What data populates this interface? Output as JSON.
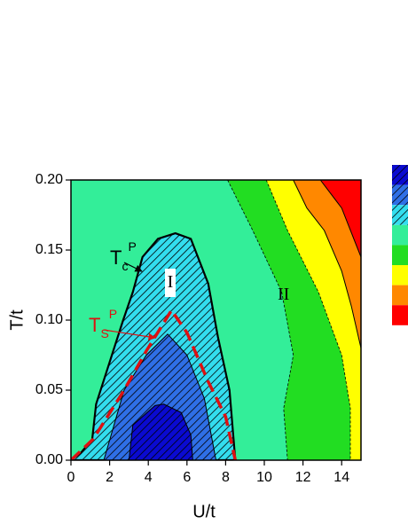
{
  "chart_data": {
    "type": "contour",
    "xlabel": "U/t",
    "ylabel": "T/t",
    "xlim": [
      0,
      15
    ],
    "ylim": [
      0,
      0.2
    ],
    "xticks": [
      0,
      2,
      4,
      6,
      8,
      10,
      12,
      14
    ],
    "yticks": [
      {
        "value": 0,
        "label": "0.00"
      },
      {
        "value": 0.05,
        "label": "0.05"
      },
      {
        "value": 0.1,
        "label": "0.10"
      },
      {
        "value": 0.15,
        "label": "0.15"
      },
      {
        "value": 0.2,
        "label": "0.20"
      }
    ],
    "background": "#33ee99",
    "contours": [
      {
        "color": "#22dd22",
        "hatch": false,
        "line": "dashed",
        "x": [
          8.1,
          9.4,
          10.9,
          11.5,
          11.0,
          11.2,
          15,
          15
        ],
        "y": [
          0.2,
          0.164,
          0.12,
          0.075,
          0.037,
          0,
          0,
          0.2
        ]
      },
      {
        "color": "#ffff00",
        "hatch": false,
        "line": "dashed",
        "x": [
          10.1,
          11.2,
          12.8,
          14.0,
          14.45,
          14.45,
          15,
          15
        ],
        "y": [
          0.2,
          0.164,
          0.12,
          0.075,
          0.037,
          0,
          0,
          0.2
        ]
      },
      {
        "color": "#ff8800",
        "hatch": false,
        "line": "solid",
        "x": [
          11.5,
          12.2,
          13.1,
          14.0,
          14.5,
          15,
          15
        ],
        "y": [
          0.2,
          0.18,
          0.164,
          0.135,
          0.11,
          0.08,
          0.2
        ]
      },
      {
        "color": "#ff0000",
        "hatch": false,
        "line": "solid",
        "x": [
          12.9,
          14.0,
          15,
          15
        ],
        "y": [
          0.2,
          0.18,
          0.145,
          0.2
        ]
      },
      {
        "color": "#33ddee",
        "hatch": true,
        "line": "bold",
        "x": [
          0,
          0.5,
          1.1,
          1.3,
          2.0,
          2.7,
          3.2,
          3.7,
          4.5,
          5.4,
          6.2,
          7.1,
          7.6,
          8.2,
          8.5
        ],
        "y": [
          0,
          0.005,
          0.015,
          0.04,
          0.07,
          0.1,
          0.12,
          0.145,
          0.158,
          0.162,
          0.158,
          0.126,
          0.088,
          0.05,
          0
        ]
      },
      {
        "color": "#2f6fe6",
        "hatch": true,
        "line": "solid",
        "x": [
          1.7,
          2.75,
          3.9,
          5.0,
          6.0,
          6.9,
          7.5
        ],
        "y": [
          0,
          0.05,
          0.075,
          0.09,
          0.075,
          0.044,
          0
        ]
      },
      {
        "color": "#0a0ad0",
        "hatch": true,
        "line": "solid",
        "x": [
          3.0,
          3.2,
          4.35,
          4.8,
          5.7,
          6.2,
          6.3
        ],
        "y": [
          0,
          0.025,
          0.039,
          0.04,
          0.034,
          0.018,
          0
        ]
      },
      {
        "color": "#dd1111",
        "hatch": false,
        "line": "red-dashed",
        "x": [
          0,
          1.15,
          2.75,
          3.9,
          5.2,
          6.0,
          7.1,
          8.0,
          8.5
        ],
        "y": [
          0,
          0.015,
          0.05,
          0.078,
          0.107,
          0.091,
          0.056,
          0.031,
          0
        ]
      }
    ],
    "annotations": [
      {
        "text": "T",
        "sub": "c",
        "sup": "P",
        "color": "#000000"
      },
      {
        "text": "T",
        "sub": "S",
        "sup": "P",
        "color": "#dd1111"
      },
      {
        "text": "I",
        "color": "#000000"
      },
      {
        "text": "II",
        "color": "#000000"
      }
    ],
    "legend_colors": [
      {
        "color": "#0a0ad0",
        "hatch": true
      },
      {
        "color": "#2f6fe6",
        "hatch": true
      },
      {
        "color": "#33ddee",
        "hatch": true
      },
      {
        "color": "#33ee99",
        "hatch": false
      },
      {
        "color": "#22dd22",
        "hatch": false
      },
      {
        "color": "#ffff00",
        "hatch": false
      },
      {
        "color": "#ff8800",
        "hatch": false
      },
      {
        "color": "#ff0000",
        "hatch": false
      }
    ]
  }
}
